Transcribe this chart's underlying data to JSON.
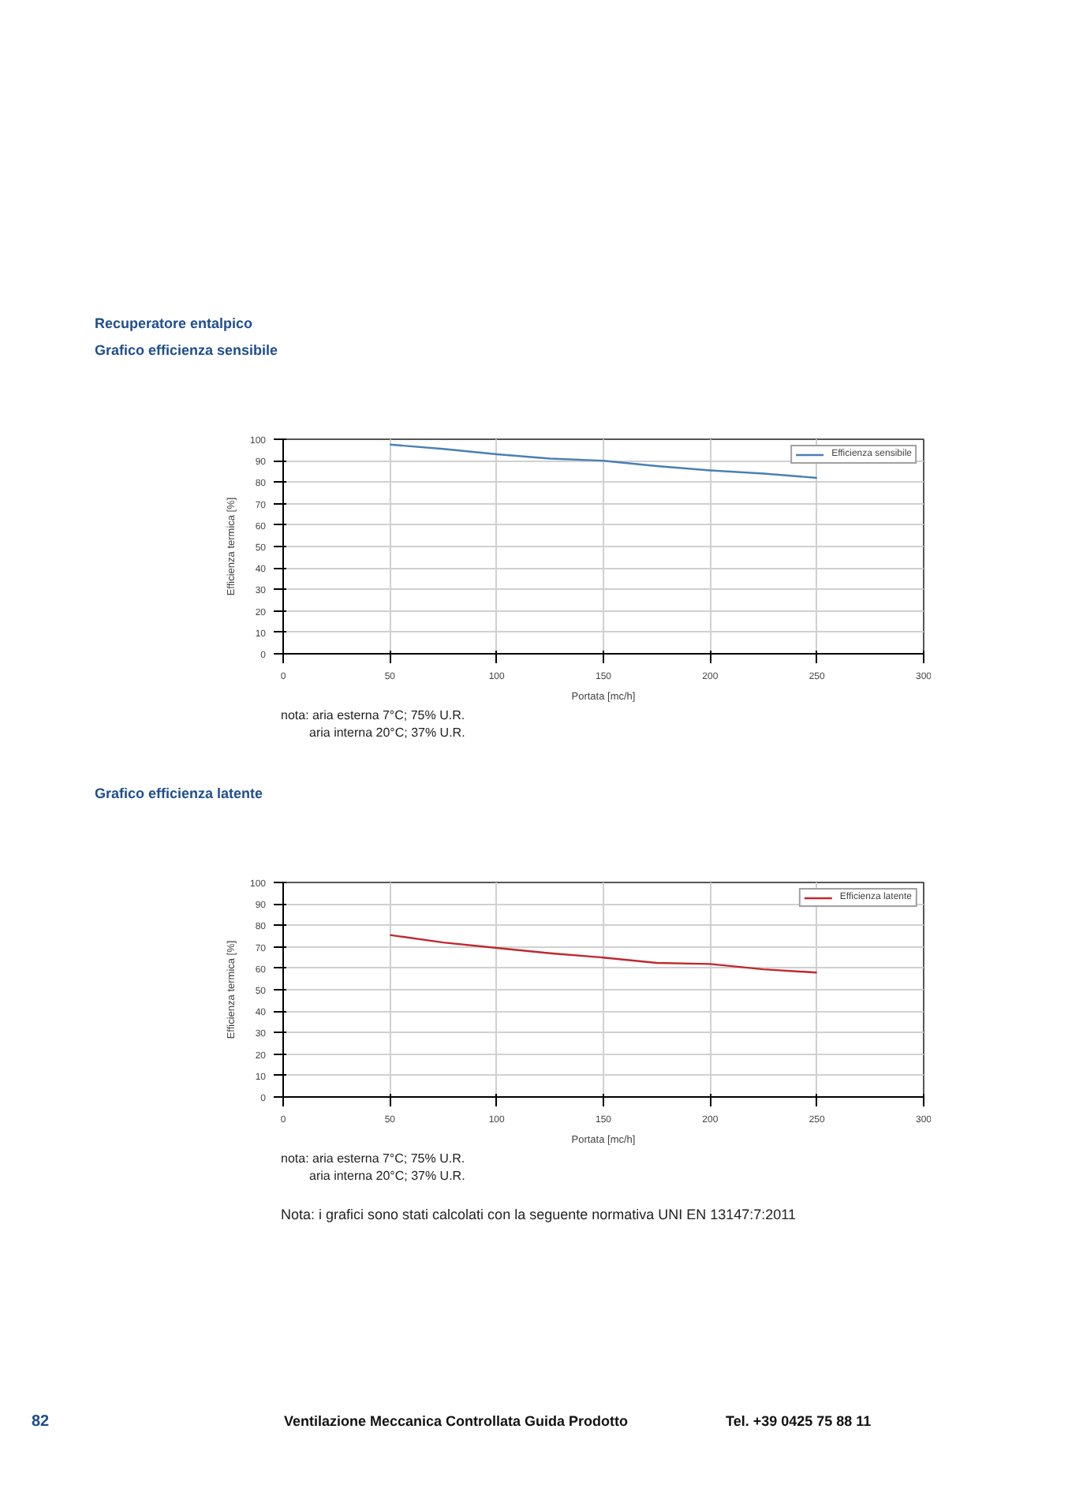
{
  "chart_data": [
    {
      "type": "line",
      "title": "Recuperatore entalpico",
      "subtitle": "Grafico efficienza sensibile",
      "xlabel": "Portata [mc/h]",
      "ylabel": "Efficienza termica [%]",
      "x": [
        50,
        75,
        100,
        125,
        150,
        175,
        200,
        225,
        250
      ],
      "series": [
        {
          "name": "Efficienza sensibile",
          "color": "#4a7fb5",
          "values": [
            97.5,
            95.5,
            93,
            91,
            90,
            87.5,
            85.5,
            84,
            82
          ]
        }
      ],
      "xlim": [
        0,
        300
      ],
      "xticks": [
        0,
        50,
        100,
        150,
        200,
        250,
        300
      ],
      "ylim": [
        0,
        100
      ],
      "yticks": [
        0,
        10,
        20,
        30,
        40,
        50,
        60,
        70,
        80,
        90,
        100
      ],
      "grid": true,
      "legend": "top right",
      "marker": "none",
      "line_style": "solid",
      "annotations": [
        "nota: aria esterna 7°C; 75% U.R.",
        "aria interna 20°C; 37% U.R."
      ]
    },
    {
      "type": "line",
      "title": "Grafico efficienza latente",
      "xlabel": "Portata [mc/h]",
      "ylabel": "Efficienza termica [%]",
      "x": [
        50,
        75,
        100,
        125,
        150,
        175,
        200,
        225,
        250
      ],
      "series": [
        {
          "name": "Efficienza latente",
          "color": "#c0282d",
          "values": [
            75.5,
            72,
            69.5,
            67,
            65,
            62.5,
            62,
            59.5,
            58
          ]
        }
      ],
      "xlim": [
        0,
        300
      ],
      "xticks": [
        0,
        50,
        100,
        150,
        200,
        250,
        300
      ],
      "ylim": [
        0,
        100
      ],
      "yticks": [
        0,
        10,
        20,
        30,
        40,
        50,
        60,
        70,
        80,
        90,
        100
      ],
      "grid": true,
      "legend": "top right",
      "marker": "none",
      "line_style": "solid",
      "annotations": [
        "nota: aria esterna 7°C; 75% U.R.",
        "aria interna 20°C; 37% U.R.",
        "Nota: i grafici sono stati calcolati con la seguente normativa UNI EN 13147:7:2011",
        "82",
        "Ventilazione Meccanica Controllata Guida Prodotto",
        "Tel. +39 0425 75 88 11"
      ]
    }
  ]
}
